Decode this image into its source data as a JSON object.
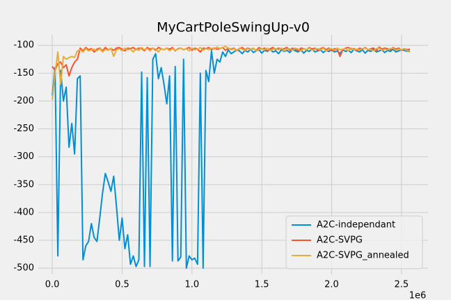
{
  "chart_data": {
    "type": "line",
    "title": "MyCartPoleSwingUp-v0",
    "x_offset_label": "1e6",
    "x": [
      0,
      0.02,
      0.04,
      0.06,
      0.08,
      0.1,
      0.12,
      0.14,
      0.16,
      0.18,
      0.2,
      0.22,
      0.24,
      0.26,
      0.28,
      0.3,
      0.32,
      0.34,
      0.36,
      0.38,
      0.4,
      0.42,
      0.44,
      0.46,
      0.48,
      0.5,
      0.52,
      0.54,
      0.56,
      0.58,
      0.6,
      0.62,
      0.64,
      0.66,
      0.68,
      0.7,
      0.72,
      0.74,
      0.76,
      0.78,
      0.8,
      0.82,
      0.84,
      0.86,
      0.88,
      0.9,
      0.92,
      0.94,
      0.96,
      0.98,
      1,
      1.02,
      1.04,
      1.06,
      1.08,
      1.1,
      1.12,
      1.14,
      1.16,
      1.18,
      1.2,
      1.22,
      1.24,
      1.26,
      1.28,
      1.3,
      1.32,
      1.34,
      1.36,
      1.38,
      1.4,
      1.42,
      1.44,
      1.46,
      1.48,
      1.5,
      1.52,
      1.54,
      1.56,
      1.58,
      1.6,
      1.62,
      1.64,
      1.66,
      1.68,
      1.7,
      1.72,
      1.74,
      1.76,
      1.78,
      1.8,
      1.82,
      1.84,
      1.86,
      1.88,
      1.9,
      1.92,
      1.94,
      1.96,
      1.98,
      2,
      2.02,
      2.04,
      2.06,
      2.08,
      2.1,
      2.12,
      2.14,
      2.16,
      2.18,
      2.2,
      2.22,
      2.24,
      2.26,
      2.28,
      2.3,
      2.32,
      2.34,
      2.36,
      2.38,
      2.4,
      2.42,
      2.44,
      2.46,
      2.48,
      2.5,
      2.52,
      2.54,
      2.56
    ],
    "series": [
      {
        "name": "A2C-independant",
        "color": "#008fd5",
        "values": [
          -190,
          -140,
          -478,
          -145,
          -200,
          -175,
          -283,
          -240,
          -295,
          -160,
          -155,
          -485,
          -460,
          -452,
          -420,
          -445,
          -452,
          -410,
          -365,
          -330,
          -345,
          -362,
          -335,
          -390,
          -450,
          -410,
          -465,
          -440,
          -493,
          -478,
          -497,
          -485,
          -148,
          -497,
          -158,
          -497,
          -125,
          -115,
          -160,
          -140,
          -170,
          -205,
          -155,
          -487,
          -138,
          -487,
          -480,
          -125,
          -500,
          -478,
          -485,
          -482,
          -493,
          -150,
          -500,
          -145,
          -165,
          -110,
          -150,
          -125,
          -130,
          -112,
          -120,
          -108,
          -115,
          -112,
          -108,
          -110,
          -115,
          -109,
          -112,
          -107,
          -113,
          -110,
          -108,
          -114,
          -109,
          -111,
          -107,
          -112,
          -110,
          -115,
          -108,
          -111,
          -109,
          -113,
          -107,
          -110,
          -112,
          -108,
          -114,
          -109,
          -111,
          -106,
          -112,
          -110,
          -108,
          -113,
          -109,
          -111,
          -107,
          -112,
          -110,
          -115,
          -108,
          -111,
          -109,
          -113,
          -107,
          -110,
          -112,
          -108,
          -114,
          -109,
          -111,
          -106,
          -112,
          -110,
          -108,
          -113,
          -109,
          -111,
          -107,
          -112,
          -110,
          -108,
          -109,
          -111,
          -110
        ]
      },
      {
        "name": "A2C-SVPG",
        "color": "#fc4f30",
        "values": [
          -138,
          -145,
          -133,
          -130,
          -140,
          -135,
          -155,
          -140,
          -130,
          -125,
          -105,
          -110,
          -104,
          -108,
          -106,
          -112,
          -107,
          -105,
          -110,
          -104,
          -108,
          -106,
          -109,
          -105,
          -104,
          -107,
          -110,
          -105,
          -106,
          -104,
          -108,
          -105,
          -106,
          -110,
          -104,
          -107,
          -105,
          -109,
          -104,
          -106,
          -108,
          -105,
          -107,
          -104,
          -110,
          -106,
          -105,
          -108,
          -106,
          -104,
          -109,
          -105,
          -107,
          -112,
          -105,
          -106,
          -104,
          -108,
          -105,
          -107,
          -106,
          -104,
          -109,
          -105,
          -107,
          -105,
          -110,
          -106,
          -104,
          -108,
          -105,
          -107,
          -106,
          -109,
          -104,
          -107,
          -105,
          -110,
          -106,
          -104,
          -108,
          -105,
          -107,
          -106,
          -104,
          -109,
          -105,
          -107,
          -110,
          -105,
          -106,
          -108,
          -104,
          -107,
          -105,
          -109,
          -106,
          -104,
          -108,
          -105,
          -110,
          -106,
          -107,
          -120,
          -108,
          -105,
          -104,
          -107,
          -106,
          -109,
          -105,
          -107,
          -104,
          -108,
          -106,
          -105,
          -110,
          -103,
          -107,
          -105,
          -106,
          -108,
          -104,
          -107,
          -105,
          -109,
          -106,
          -108,
          -107
        ]
      },
      {
        "name": "A2C-SVPG_annealed",
        "color": "#e5ae38",
        "values": [
          -198,
          -150,
          -112,
          -170,
          -120,
          -125,
          -122,
          -120,
          -122,
          -110,
          -108,
          -112,
          -106,
          -110,
          -108,
          -107,
          -110,
          -106,
          -112,
          -107,
          -109,
          -105,
          -120,
          -108,
          -106,
          -110,
          -105,
          -108,
          -107,
          -112,
          -106,
          -109,
          -104,
          -108,
          -106,
          -110,
          -105,
          -107,
          -112,
          -106,
          -108,
          -105,
          -110,
          -106,
          -109,
          -107,
          -105,
          -108,
          -106,
          -110,
          -105,
          -108,
          -107,
          -104,
          -109,
          -106,
          -108,
          -105,
          -107,
          -103,
          -106,
          -104,
          -102,
          -105,
          -108,
          -106,
          -110,
          -105,
          -107,
          -109,
          -106,
          -108,
          -105,
          -110,
          -107,
          -106,
          -108,
          -105,
          -109,
          -107,
          -106,
          -108,
          -105,
          -110,
          -107,
          -106,
          -109,
          -105,
          -107,
          -110,
          -106,
          -108,
          -105,
          -109,
          -107,
          -106,
          -108,
          -105,
          -110,
          -107,
          -106,
          -109,
          -105,
          -108,
          -107,
          -106,
          -110,
          -105,
          -108,
          -107,
          -109,
          -106,
          -105,
          -108,
          -107,
          -110,
          -106,
          -105,
          -109,
          -107,
          -108,
          -106,
          -105,
          -109,
          -107,
          -108,
          -106,
          -110,
          -112
        ]
      }
    ],
    "xlim": [
      -0.1,
      2.69
    ],
    "ylim": [
      -511,
      -81
    ],
    "xticks": [
      {
        "value": 0,
        "label": "0.0"
      },
      0.5,
      {
        "value": 1,
        "label": "1.0"
      },
      1.5,
      {
        "value": 2,
        "label": "2.0"
      },
      2.5
    ],
    "yticks": [
      -100,
      -150,
      -200,
      -250,
      -300,
      -350,
      -400,
      -450,
      -500
    ],
    "grid": true,
    "legend": "lower right"
  }
}
